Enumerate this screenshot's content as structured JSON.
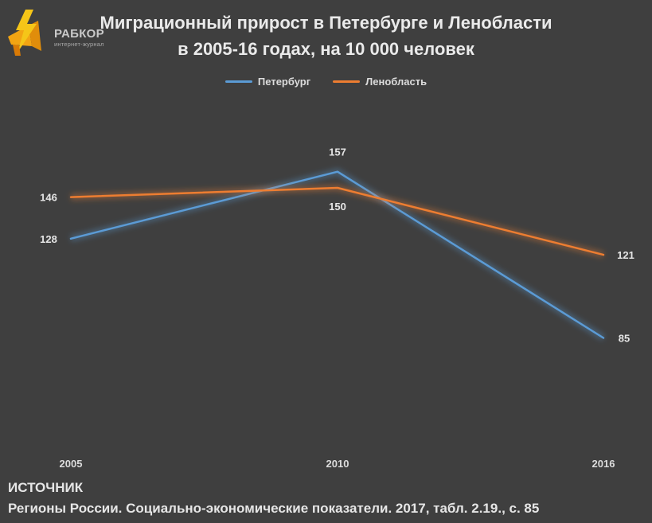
{
  "logo": {
    "brand": "РАБКОР",
    "subtitle": "интернет-журнал",
    "icon": "lightning-megaphone-icon",
    "colors": {
      "primary": "#f2a413",
      "accent": "#f5c518"
    }
  },
  "title": {
    "line1": "Миграционный прирост в Петербурге и Ленобласти",
    "line2": "в 2005-16 годах, на 10 000 человек"
  },
  "source": {
    "heading": "ИСТОЧНИК",
    "text": "Регионы России. Социально-экономические показатели. 2017, табл. 2.19., с. 85"
  },
  "chart_data": {
    "type": "line",
    "categories": [
      "2005",
      "2010",
      "2016"
    ],
    "series": [
      {
        "name": "Петербург",
        "values": [
          128,
          157,
          85
        ],
        "color": "#5b9bd5"
      },
      {
        "name": "Ленобласть",
        "values": [
          146,
          150,
          121
        ],
        "color": "#ed7d31"
      }
    ],
    "ylim": [
      40,
      190
    ],
    "grid": false,
    "legend_position": "top",
    "data_labels": true
  }
}
